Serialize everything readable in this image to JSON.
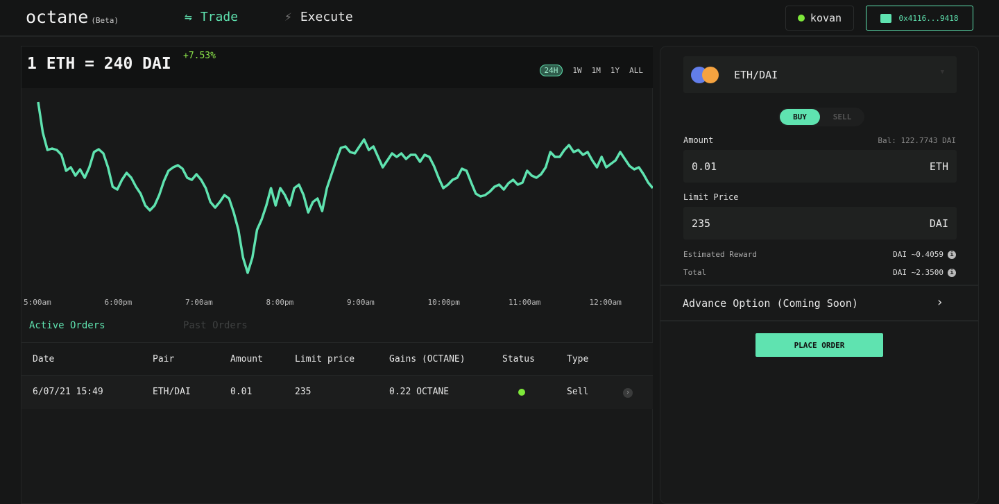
{
  "header": {
    "logo": "octane",
    "beta": "(Beta)",
    "nav": [
      {
        "label": "Trade",
        "icon": "swap-arrows-icon",
        "active": true
      },
      {
        "label": "Execute",
        "icon": "lightning-icon",
        "active": false
      }
    ],
    "network": "kovan",
    "wallet": "0x4116...9418"
  },
  "chart": {
    "price": "1 ETH = 240 DAI",
    "change": "+7.53%",
    "ranges": [
      "24H",
      "1W",
      "1M",
      "1Y",
      "ALL"
    ],
    "active_range": "24H"
  },
  "chart_data": {
    "type": "line",
    "title": "",
    "xlabel": "",
    "ylabel": "",
    "grid": false,
    "x_ticks": [
      "5:00am",
      "6:00pm",
      "7:00am",
      "8:00pm",
      "9:00am",
      "10:00pm",
      "11:00am",
      "12:00am"
    ],
    "line_color": "#5fe3b0",
    "values": [
      254,
      210,
      185,
      187,
      185,
      178,
      155,
      160,
      148,
      157,
      145,
      160,
      182,
      186,
      180,
      160,
      132,
      128,
      142,
      152,
      145,
      132,
      122,
      105,
      98,
      105,
      120,
      140,
      155,
      160,
      163,
      158,
      145,
      142,
      150,
      142,
      130,
      110,
      102,
      110,
      120,
      115,
      95,
      70,
      30,
      8,
      30,
      70,
      85,
      105,
      130,
      105,
      130,
      120,
      105,
      130,
      135,
      120,
      95,
      110,
      115,
      97,
      130,
      150,
      170,
      188,
      190,
      182,
      180,
      190,
      200,
      185,
      190,
      175,
      160,
      170,
      180,
      175,
      180,
      172,
      178,
      178,
      168,
      178,
      175,
      162,
      145,
      130,
      135,
      142,
      145,
      158,
      155,
      138,
      122,
      118,
      120,
      125,
      132,
      135,
      128,
      137,
      142,
      135,
      138,
      155,
      148,
      145,
      150,
      160,
      182,
      175,
      175,
      185,
      192,
      182,
      185,
      178,
      182,
      170,
      160,
      175,
      160,
      165,
      170,
      182,
      172,
      162,
      157,
      160,
      150,
      138,
      130
    ]
  },
  "orders": {
    "tabs": [
      "Active Orders",
      "Past Orders"
    ],
    "active_tab": "Active Orders",
    "columns": [
      "Date",
      "Pair",
      "Amount",
      "Limit price",
      "Gains (OCTANE)",
      "Status",
      "Type"
    ],
    "rows": [
      {
        "date": "6/07/21 15:49",
        "pair": "ETH/DAI",
        "amount": "0.01",
        "limit": "235",
        "gains": "0.22 OCTANE",
        "status": "active",
        "type": "Sell"
      }
    ]
  },
  "form": {
    "pair": "ETH/DAI",
    "sides": [
      "BUY",
      "SELL"
    ],
    "active_side": "BUY",
    "amount_label": "Amount",
    "balance": "Bal: 122.7743 DAI",
    "amount_value": "0.01",
    "amount_unit": "ETH",
    "limit_label": "Limit Price",
    "limit_value": "235",
    "limit_unit": "DAI",
    "reward_label": "Estimated Reward",
    "reward_value": "DAI ~0.4059",
    "total_label": "Total",
    "total_value": "DAI ~2.3500",
    "advance": "Advance Option (Coming Soon)",
    "place": "PLACE ORDER"
  }
}
